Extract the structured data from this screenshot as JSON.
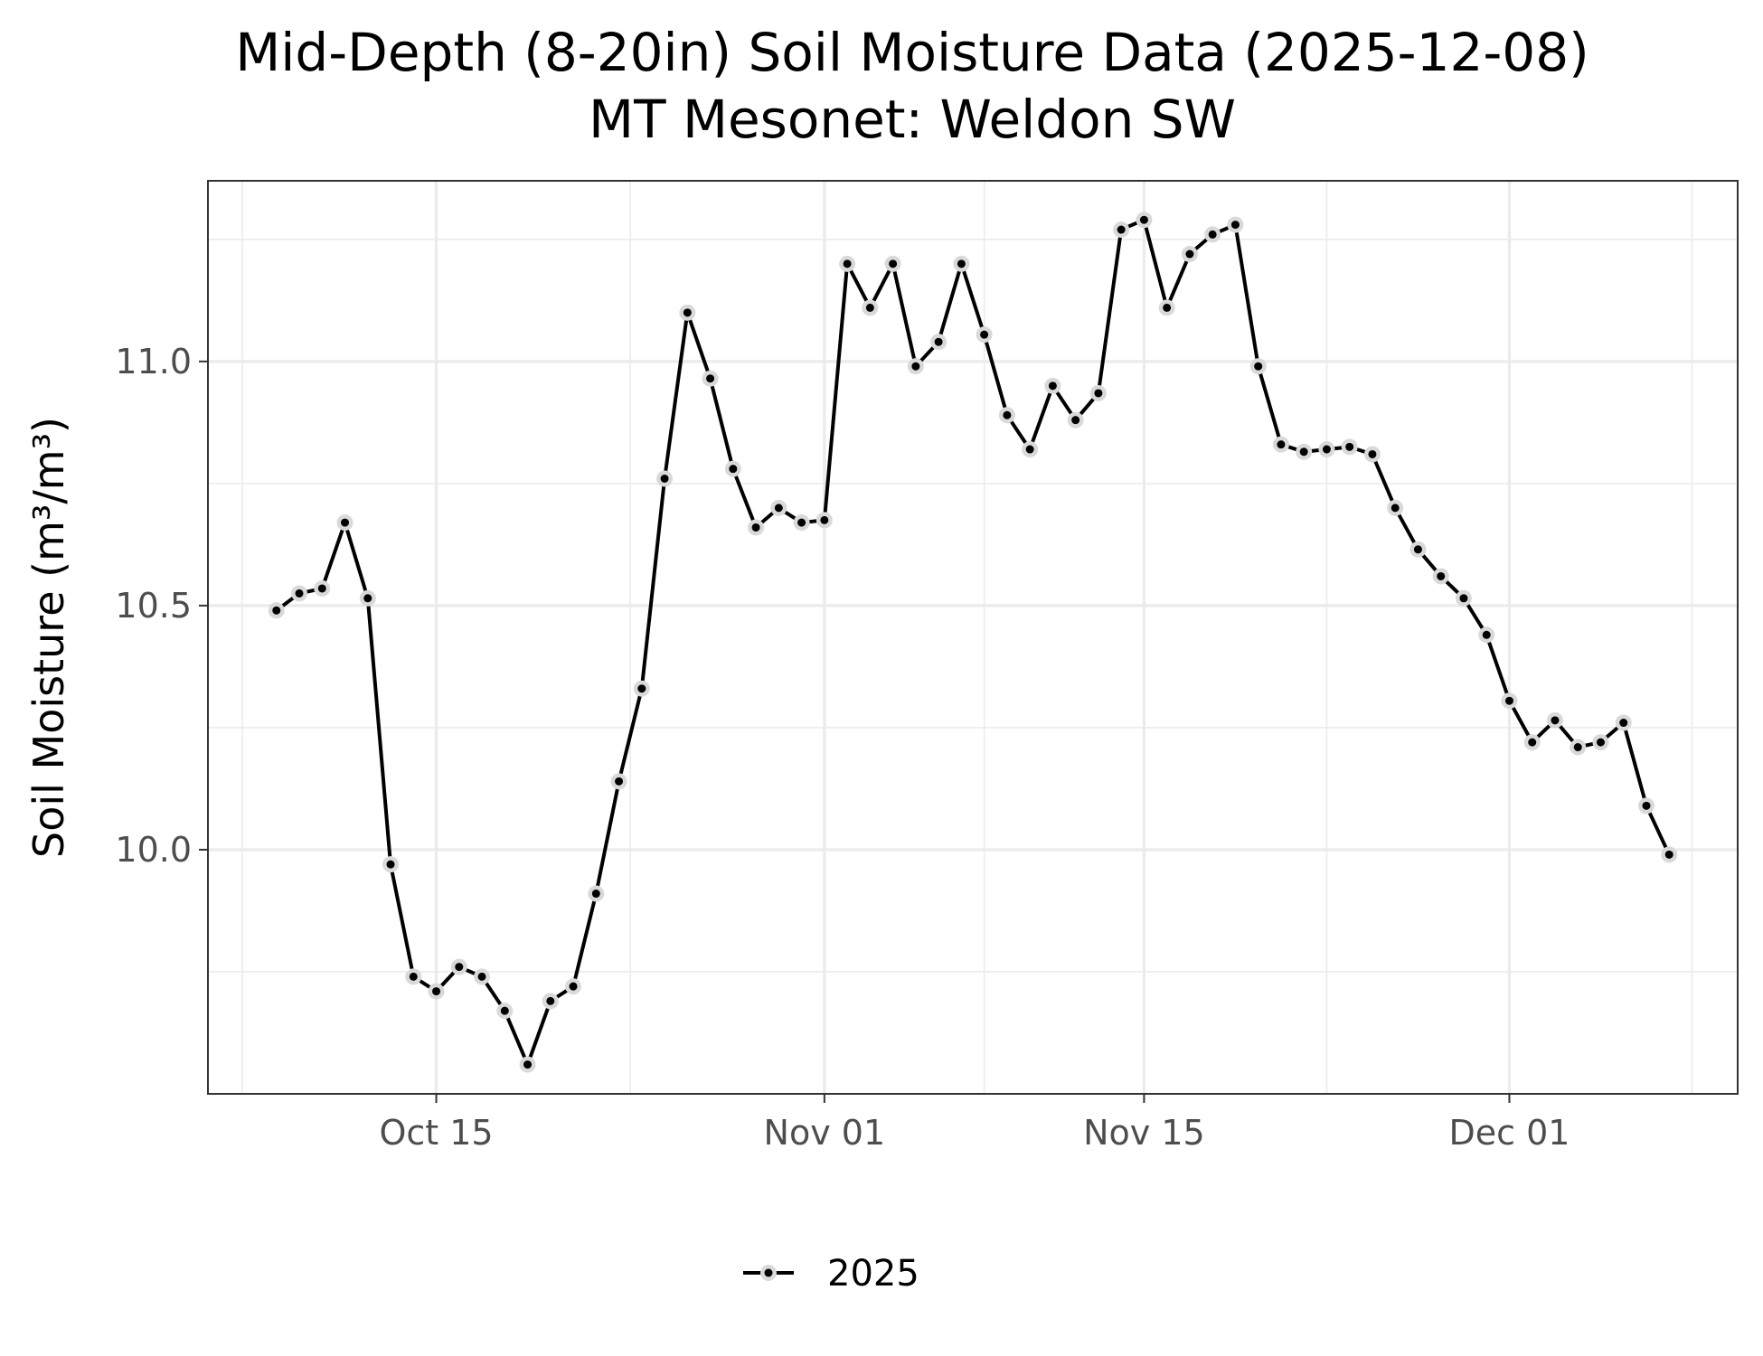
{
  "chart_data": {
    "type": "line",
    "title_line1": "Mid-Depth (8-20in) Soil Moisture Data (2025-12-08)",
    "title_line2": "MT Mesonet: Weldon SW",
    "xlabel": "",
    "ylabel": "Soil Moisture (m³/m³)",
    "x_ticks": [
      {
        "date": "2025-10-15",
        "label": "Oct 15"
      },
      {
        "date": "2025-11-01",
        "label": "Nov 01"
      },
      {
        "date": "2025-11-15",
        "label": "Nov 15"
      },
      {
        "date": "2025-12-01",
        "label": "Dec 01"
      }
    ],
    "y_ticks": [
      {
        "value": 10.0,
        "label": "10.0"
      },
      {
        "value": 10.5,
        "label": "10.5"
      },
      {
        "value": 11.0,
        "label": "11.0"
      }
    ],
    "xlim": [
      "2025-10-05",
      "2025-12-11"
    ],
    "ylim": [
      9.5,
      11.37
    ],
    "grid": true,
    "legend_position": "bottom",
    "colors": {
      "line": "#000000",
      "point_halo": "#d9d9d9",
      "grid": "#ebebeb",
      "panel_border": "#333333"
    },
    "series": [
      {
        "name": "2025",
        "x": [
          "2025-10-08",
          "2025-10-09",
          "2025-10-10",
          "2025-10-11",
          "2025-10-12",
          "2025-10-13",
          "2025-10-14",
          "2025-10-15",
          "2025-10-16",
          "2025-10-17",
          "2025-10-18",
          "2025-10-19",
          "2025-10-20",
          "2025-10-21",
          "2025-10-22",
          "2025-10-23",
          "2025-10-24",
          "2025-10-25",
          "2025-10-26",
          "2025-10-27",
          "2025-10-28",
          "2025-10-29",
          "2025-10-30",
          "2025-10-31",
          "2025-11-01",
          "2025-11-02",
          "2025-11-03",
          "2025-11-04",
          "2025-11-05",
          "2025-11-06",
          "2025-11-07",
          "2025-11-08",
          "2025-11-09",
          "2025-11-10",
          "2025-11-11",
          "2025-11-12",
          "2025-11-13",
          "2025-11-14",
          "2025-11-15",
          "2025-11-16",
          "2025-11-17",
          "2025-11-18",
          "2025-11-19",
          "2025-11-20",
          "2025-11-21",
          "2025-11-22",
          "2025-11-23",
          "2025-11-24",
          "2025-11-25",
          "2025-11-26",
          "2025-11-27",
          "2025-11-28",
          "2025-11-29",
          "2025-11-30",
          "2025-12-01",
          "2025-12-02",
          "2025-12-03",
          "2025-12-04",
          "2025-12-05",
          "2025-12-06",
          "2025-12-07",
          "2025-12-08"
        ],
        "y": [
          10.49,
          10.525,
          10.535,
          10.67,
          10.515,
          9.97,
          9.74,
          9.71,
          9.76,
          9.74,
          9.67,
          9.56,
          9.69,
          9.72,
          9.91,
          10.14,
          10.33,
          10.76,
          11.1,
          10.965,
          10.78,
          10.66,
          10.7,
          10.67,
          10.675,
          11.2,
          11.11,
          11.2,
          10.99,
          11.04,
          11.2,
          11.055,
          10.89,
          10.82,
          10.95,
          10.88,
          10.935,
          11.27,
          11.29,
          11.11,
          11.22,
          11.26,
          11.28,
          10.99,
          10.83,
          10.815,
          10.82,
          10.825,
          10.81,
          10.7,
          10.615,
          10.56,
          10.515,
          10.44,
          10.305,
          10.22,
          10.265,
          10.21,
          10.22,
          10.26,
          10.09,
          9.99
        ]
      }
    ]
  }
}
